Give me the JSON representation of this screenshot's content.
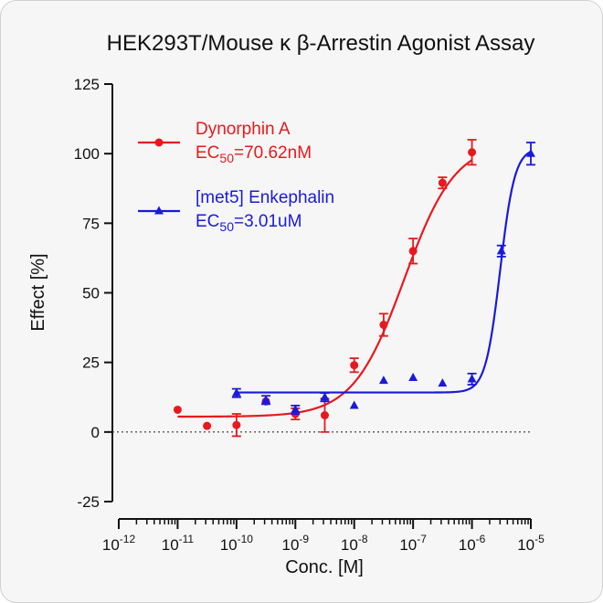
{
  "chart_data": {
    "type": "scatter",
    "title": "HEK293T/Mouse κ β-Arrestin Agonist Assay",
    "xlabel": "Conc. [M]",
    "ylabel": "Effect  [%]",
    "x_scale": "log10",
    "xlim": [
      1e-12,
      1e-05
    ],
    "ylim": [
      -25,
      125
    ],
    "y_ticks": [
      -25,
      0,
      25,
      50,
      75,
      100,
      125
    ],
    "x_ticks": [
      {
        "base": "10",
        "exp": "-12"
      },
      {
        "base": "10",
        "exp": "-11"
      },
      {
        "base": "10",
        "exp": "-10"
      },
      {
        "base": "10",
        "exp": "-9"
      },
      {
        "base": "10",
        "exp": "-8"
      },
      {
        "base": "10",
        "exp": "-7"
      },
      {
        "base": "10",
        "exp": "-6"
      },
      {
        "base": "10",
        "exp": "-5"
      }
    ],
    "zero_line": "dotted",
    "legend_position": "top-left",
    "series": [
      {
        "name": "Dynorphin A",
        "ec50_label": "EC",
        "ec50_sub": "50",
        "ec50_value": "=70.62nM",
        "color": "#e8191e",
        "marker": "circle",
        "fit": {
          "bottom": 5.5,
          "top": 104.2,
          "log_ec50": -7.151,
          "hill": 1.0
        },
        "points": [
          {
            "x": 1e-11,
            "y": 8.0,
            "err": 0
          },
          {
            "x": 3.16e-11,
            "y": 2.2,
            "err": 0
          },
          {
            "x": 1e-10,
            "y": 2.5,
            "err": 4
          },
          {
            "x": 3.16e-10,
            "y": 11.0,
            "err": 0
          },
          {
            "x": 1e-09,
            "y": 6.5,
            "err": 2
          },
          {
            "x": 3.16e-09,
            "y": 6.0,
            "err": 6
          },
          {
            "x": 1e-08,
            "y": 24.0,
            "err": 2.5
          },
          {
            "x": 3.16e-08,
            "y": 38.5,
            "err": 4
          },
          {
            "x": 1e-07,
            "y": 65.0,
            "err": 4.5
          },
          {
            "x": 3.16e-07,
            "y": 89.5,
            "err": 2
          },
          {
            "x": 1e-06,
            "y": 100.5,
            "err": 4.5
          }
        ]
      },
      {
        "name": "[met5] Enkephalin",
        "ec50_label": "EC",
        "ec50_sub": "50",
        "ec50_value": "=3.01uM",
        "color": "#1a1adb",
        "marker": "triangle",
        "fit": {
          "bottom": 14.2,
          "top": 102,
          "log_ec50": -5.521,
          "hill": 3.5
        },
        "points": [
          {
            "x": 1e-10,
            "y": 14.0,
            "err": 1.5
          },
          {
            "x": 3.16e-10,
            "y": 11.5,
            "err": 1.5
          },
          {
            "x": 1e-09,
            "y": 8.0,
            "err": 1.5
          },
          {
            "x": 3.16e-09,
            "y": 12.5,
            "err": 1.5
          },
          {
            "x": 1e-08,
            "y": 9.5,
            "err": 0
          },
          {
            "x": 3.16e-08,
            "y": 18.5,
            "err": 0
          },
          {
            "x": 1e-07,
            "y": 19.5,
            "err": 0
          },
          {
            "x": 3.16e-07,
            "y": 17.5,
            "err": 0
          },
          {
            "x": 1e-06,
            "y": 19.0,
            "err": 2
          },
          {
            "x": 3.16e-06,
            "y": 65.0,
            "err": 2
          },
          {
            "x": 1e-05,
            "y": 100.0,
            "err": 4
          }
        ]
      }
    ]
  }
}
